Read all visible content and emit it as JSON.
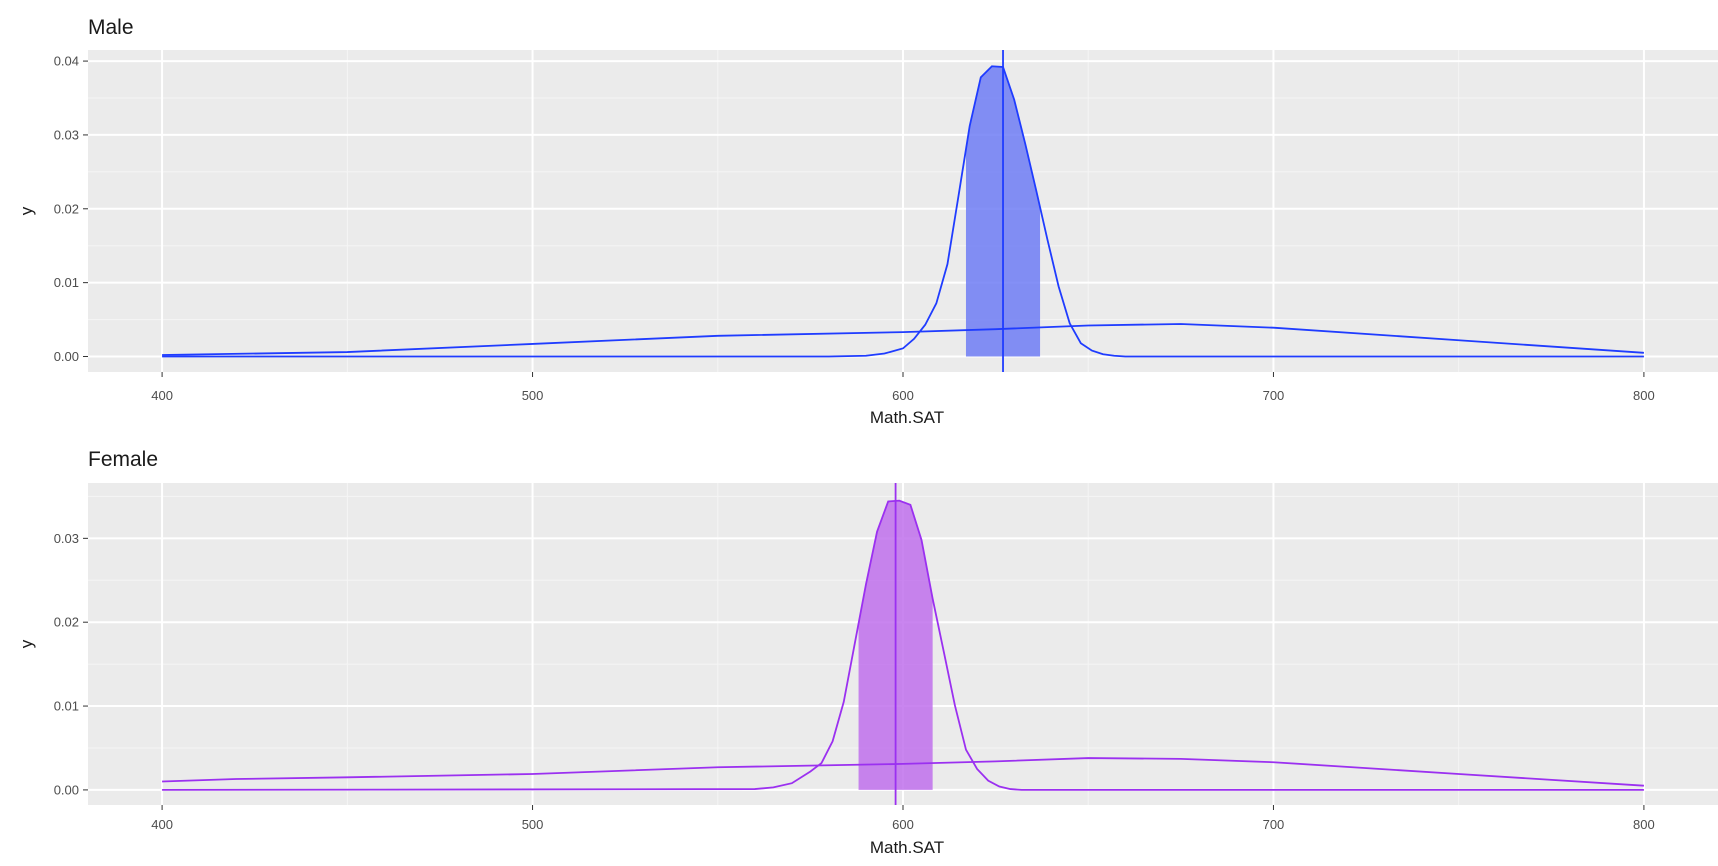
{
  "chart_data": [
    {
      "type": "line",
      "title": "Male",
      "xlabel": "Math.SAT",
      "ylabel": "y",
      "xlim": [
        380,
        820
      ],
      "ylim": [
        -0.0021,
        0.0415
      ],
      "x_ticks": [
        400,
        500,
        600,
        700,
        800
      ],
      "y_ticks": [
        0.0,
        0.01,
        0.02,
        0.03,
        0.04
      ],
      "y_tick_labels": [
        "0.00",
        "0.01",
        "0.02",
        "0.03",
        "0.04"
      ],
      "color": "#1f3cff",
      "fill_color": "#6e7cf5",
      "vline_x": 627,
      "shade_range": [
        617,
        637
      ],
      "grid": true,
      "series": [
        {
          "x": [
            400,
            450,
            500,
            550,
            600,
            625,
            650,
            675,
            700,
            750,
            800
          ],
          "y": [
            0.0002,
            0.0006,
            0.0017,
            0.0028,
            0.0033,
            0.0037,
            0.0042,
            0.0044,
            0.0039,
            0.0022,
            0.0005
          ]
        },
        {
          "x": [
            400,
            580,
            590,
            595,
            600,
            603,
            606,
            609,
            612,
            615,
            618,
            621,
            624,
            627,
            630,
            633,
            636,
            639,
            642,
            645,
            648,
            651,
            654,
            657,
            660,
            670,
            700,
            800
          ],
          "y": [
            0.0,
            0.0,
            0.0001,
            0.0004,
            0.0011,
            0.0024,
            0.0043,
            0.0072,
            0.0125,
            0.0218,
            0.0312,
            0.0378,
            0.0393,
            0.0392,
            0.0348,
            0.0288,
            0.0224,
            0.0158,
            0.0095,
            0.0045,
            0.0018,
            0.0008,
            0.0003,
            0.0001,
            0.0,
            0.0,
            0.0,
            0.0
          ]
        }
      ]
    },
    {
      "type": "line",
      "title": "Female",
      "xlabel": "Math.SAT",
      "ylabel": "y",
      "xlim": [
        380,
        820
      ],
      "ylim": [
        -0.0018,
        0.0366
      ],
      "x_ticks": [
        400,
        500,
        600,
        700,
        800
      ],
      "y_ticks": [
        0.0,
        0.01,
        0.02,
        0.03
      ],
      "y_tick_labels": [
        "0.00",
        "0.01",
        "0.02",
        "0.03"
      ],
      "color": "#9b30f0",
      "fill_color": "#bf70ec",
      "vline_x": 598,
      "shade_range": [
        588,
        608
      ],
      "grid": true,
      "series": [
        {
          "x": [
            400,
            420,
            450,
            500,
            550,
            600,
            625,
            650,
            675,
            700,
            750,
            800
          ],
          "y": [
            0.001,
            0.0013,
            0.0015,
            0.0019,
            0.0027,
            0.0031,
            0.0034,
            0.0038,
            0.0037,
            0.0033,
            0.0019,
            0.0005
          ]
        },
        {
          "x": [
            400,
            560,
            565,
            570,
            575,
            578,
            581,
            584,
            587,
            590,
            593,
            596,
            599,
            602,
            605,
            608,
            611,
            614,
            617,
            620,
            623,
            626,
            629,
            632,
            640,
            700,
            800
          ],
          "y": [
            0.0,
            0.0001,
            0.0003,
            0.0008,
            0.0022,
            0.0032,
            0.0058,
            0.0105,
            0.0175,
            0.0245,
            0.0308,
            0.0344,
            0.0345,
            0.034,
            0.0298,
            0.0228,
            0.0165,
            0.0101,
            0.0048,
            0.0025,
            0.0011,
            0.0004,
            0.0001,
            0.0,
            0.0,
            0.0,
            0.0
          ]
        }
      ]
    }
  ]
}
